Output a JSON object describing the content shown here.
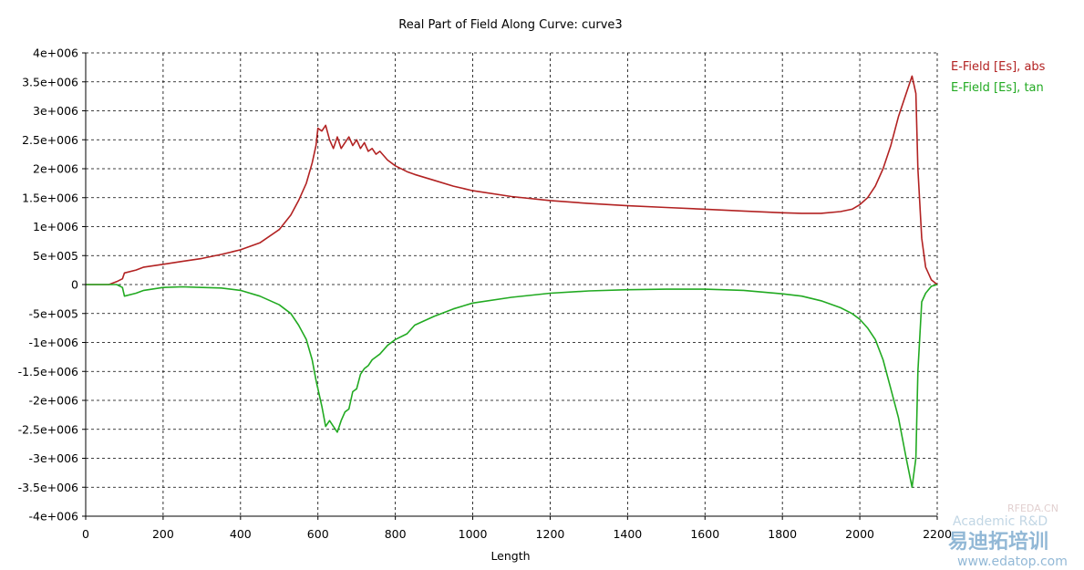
{
  "chart_data": {
    "type": "line",
    "title": "Real Part of Field Along Curve: curve3",
    "xlabel": "Length",
    "ylabel": "",
    "xlim": [
      0,
      2200
    ],
    "ylim": [
      -4000000,
      4000000
    ],
    "x_ticks": [
      "0",
      "200",
      "400",
      "600",
      "800",
      "1000",
      "1200",
      "1400",
      "1600",
      "1800",
      "2000",
      "2200"
    ],
    "x_tick_values": [
      0,
      200,
      400,
      600,
      800,
      1000,
      1200,
      1400,
      1600,
      1800,
      2000,
      2200
    ],
    "y_ticks": [
      "4e+006",
      "3.5e+006",
      "3e+006",
      "2.5e+006",
      "2e+006",
      "1.5e+006",
      "1e+006",
      "5e+005",
      "0",
      "-5e+005",
      "-1e+006",
      "-1.5e+006",
      "-2e+006",
      "-2.5e+006",
      "-3e+006",
      "-3.5e+006",
      "-4e+006"
    ],
    "y_tick_values": [
      4000000,
      3500000,
      3000000,
      2500000,
      2000000,
      1500000,
      1000000,
      500000,
      0,
      -500000,
      -1000000,
      -1500000,
      -2000000,
      -2500000,
      -3000000,
      -3500000,
      -4000000
    ],
    "grid": true,
    "legend_position": "top-right",
    "series": [
      {
        "name": "E-Field [Es], abs",
        "color": "#b22222",
        "x": [
          0,
          60,
          80,
          95,
          100,
          130,
          150,
          200,
          250,
          300,
          350,
          400,
          450,
          500,
          530,
          550,
          570,
          585,
          595,
          600,
          610,
          620,
          630,
          640,
          650,
          660,
          670,
          680,
          690,
          700,
          710,
          720,
          730,
          740,
          750,
          760,
          780,
          800,
          830,
          850,
          900,
          950,
          1000,
          1100,
          1200,
          1300,
          1400,
          1500,
          1600,
          1700,
          1800,
          1850,
          1900,
          1950,
          1980,
          2000,
          2020,
          2040,
          2060,
          2080,
          2100,
          2120,
          2135,
          2145,
          2150,
          2160,
          2170,
          2185,
          2200
        ],
        "y": [
          0,
          0,
          50000,
          100000,
          200000,
          250000,
          300000,
          350000,
          400000,
          450000,
          520000,
          600000,
          720000,
          950000,
          1200000,
          1450000,
          1750000,
          2100000,
          2400000,
          2700000,
          2650000,
          2750000,
          2500000,
          2350000,
          2550000,
          2350000,
          2450000,
          2550000,
          2400000,
          2500000,
          2350000,
          2450000,
          2300000,
          2350000,
          2250000,
          2300000,
          2150000,
          2050000,
          1950000,
          1900000,
          1800000,
          1700000,
          1620000,
          1520000,
          1450000,
          1400000,
          1360000,
          1330000,
          1300000,
          1270000,
          1240000,
          1230000,
          1230000,
          1260000,
          1300000,
          1380000,
          1500000,
          1700000,
          2000000,
          2400000,
          2900000,
          3300000,
          3600000,
          3300000,
          2000000,
          800000,
          300000,
          80000,
          0
        ]
      },
      {
        "name": "E-Field [Es], tan",
        "color": "#22aa22",
        "x": [
          0,
          80,
          95,
          100,
          130,
          150,
          200,
          250,
          300,
          350,
          400,
          450,
          500,
          530,
          550,
          570,
          585,
          595,
          600,
          610,
          620,
          630,
          640,
          650,
          660,
          670,
          680,
          690,
          700,
          710,
          720,
          730,
          740,
          750,
          760,
          780,
          800,
          830,
          850,
          900,
          950,
          1000,
          1100,
          1200,
          1300,
          1400,
          1500,
          1600,
          1700,
          1800,
          1850,
          1900,
          1950,
          1980,
          2000,
          2020,
          2040,
          2060,
          2080,
          2100,
          2120,
          2135,
          2145,
          2150,
          2160,
          2170,
          2185,
          2200
        ],
        "y": [
          0,
          0,
          -50000,
          -200000,
          -150000,
          -100000,
          -50000,
          -40000,
          -50000,
          -60000,
          -100000,
          -200000,
          -350000,
          -500000,
          -700000,
          -950000,
          -1300000,
          -1650000,
          -1800000,
          -2100000,
          -2450000,
          -2350000,
          -2450000,
          -2550000,
          -2350000,
          -2200000,
          -2150000,
          -1850000,
          -1800000,
          -1550000,
          -1450000,
          -1400000,
          -1300000,
          -1250000,
          -1200000,
          -1050000,
          -950000,
          -850000,
          -700000,
          -550000,
          -420000,
          -320000,
          -220000,
          -150000,
          -110000,
          -90000,
          -80000,
          -80000,
          -100000,
          -160000,
          -200000,
          -280000,
          -400000,
          -500000,
          -600000,
          -750000,
          -950000,
          -1300000,
          -1800000,
          -2300000,
          -3000000,
          -3500000,
          -3000000,
          -1500000,
          -300000,
          -150000,
          -30000,
          0
        ]
      }
    ]
  },
  "watermark": {
    "line1": "Academic R&D",
    "line2": "RFEDA.CN",
    "brand": "易迪拓培训",
    "url": "www.edatop.com"
  }
}
